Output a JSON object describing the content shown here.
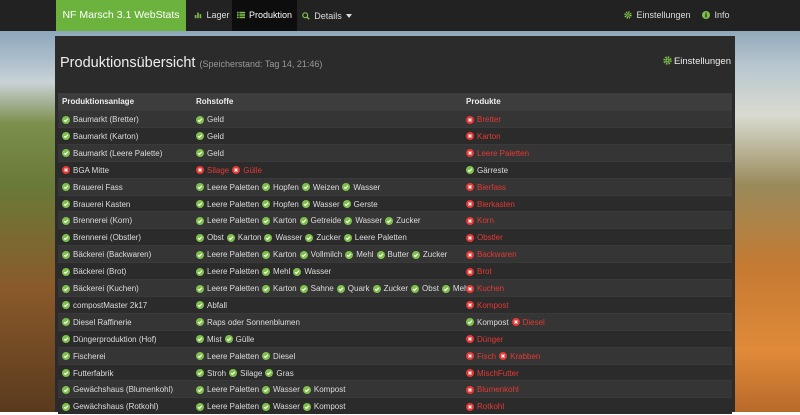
{
  "nav": {
    "brand": "NF Marsch 3.1 WebStats",
    "items": [
      "Lager",
      "Produktion",
      "Details"
    ],
    "active": 1,
    "right": [
      "Einstellungen",
      "Info"
    ]
  },
  "header": {
    "title": "Produktionsübersicht",
    "subtitle": "(Speicherstand: Tag 14, 21:46)",
    "settings": "Einstellungen"
  },
  "table": {
    "columns": [
      "Produktionsanlage",
      "Rohstoffe",
      "Produkte"
    ],
    "rows": [
      {
        "name": "Baumarkt (Bretter)",
        "ok": true,
        "inputs": [
          {
            "label": "Geld",
            "ok": true
          }
        ],
        "outputs": [
          {
            "label": "Bretter",
            "ok": false
          }
        ]
      },
      {
        "name": "Baumarkt (Karton)",
        "ok": true,
        "inputs": [
          {
            "label": "Geld",
            "ok": true
          }
        ],
        "outputs": [
          {
            "label": "Karton",
            "ok": false
          }
        ]
      },
      {
        "name": "Baumarkt (Leere Palette)",
        "ok": true,
        "inputs": [
          {
            "label": "Geld",
            "ok": true
          }
        ],
        "outputs": [
          {
            "label": "Leere Paletten",
            "ok": false
          }
        ]
      },
      {
        "name": "BGA Mitte",
        "ok": false,
        "inputs": [
          {
            "label": "Silage",
            "ok": false
          },
          {
            "label": "Gülle",
            "ok": false
          }
        ],
        "outputs": [
          {
            "label": "Gärreste",
            "ok": true
          }
        ]
      },
      {
        "name": "Brauerei Fass",
        "ok": true,
        "inputs": [
          {
            "label": "Leere Paletten",
            "ok": true
          },
          {
            "label": "Hopfen",
            "ok": true
          },
          {
            "label": "Weizen",
            "ok": true
          },
          {
            "label": "Wasser",
            "ok": true
          }
        ],
        "outputs": [
          {
            "label": "Bierfass",
            "ok": false
          }
        ]
      },
      {
        "name": "Brauerei Kasten",
        "ok": true,
        "inputs": [
          {
            "label": "Leere Paletten",
            "ok": true
          },
          {
            "label": "Hopfen",
            "ok": true
          },
          {
            "label": "Wasser",
            "ok": true
          },
          {
            "label": "Gerste",
            "ok": true
          }
        ],
        "outputs": [
          {
            "label": "Bierkasten",
            "ok": false
          }
        ]
      },
      {
        "name": "Brennerei (Korn)",
        "ok": true,
        "inputs": [
          {
            "label": "Leere Paletten",
            "ok": true
          },
          {
            "label": "Karton",
            "ok": true
          },
          {
            "label": "Getreide",
            "ok": true
          },
          {
            "label": "Wasser",
            "ok": true
          },
          {
            "label": "Zucker",
            "ok": true
          }
        ],
        "outputs": [
          {
            "label": "Korn",
            "ok": false
          }
        ]
      },
      {
        "name": "Brennerei (Obstler)",
        "ok": true,
        "inputs": [
          {
            "label": "Obst",
            "ok": true
          },
          {
            "label": "Karton",
            "ok": true
          },
          {
            "label": "Wasser",
            "ok": true
          },
          {
            "label": "Zucker",
            "ok": true
          },
          {
            "label": "Leere Paletten",
            "ok": true
          }
        ],
        "outputs": [
          {
            "label": "Obstler",
            "ok": false
          }
        ]
      },
      {
        "name": "Bäckerei (Backwaren)",
        "ok": true,
        "inputs": [
          {
            "label": "Leere Paletten",
            "ok": true
          },
          {
            "label": "Karton",
            "ok": true
          },
          {
            "label": "Vollmilch",
            "ok": true
          },
          {
            "label": "Mehl",
            "ok": true
          },
          {
            "label": "Butter",
            "ok": true
          },
          {
            "label": "Zucker",
            "ok": true
          }
        ],
        "outputs": [
          {
            "label": "Backwaren",
            "ok": false
          }
        ]
      },
      {
        "name": "Bäckerei (Brot)",
        "ok": true,
        "inputs": [
          {
            "label": "Leere Paletten",
            "ok": true
          },
          {
            "label": "Mehl",
            "ok": true
          },
          {
            "label": "Wasser",
            "ok": true
          }
        ],
        "outputs": [
          {
            "label": "Brot",
            "ok": false
          }
        ]
      },
      {
        "name": "Bäckerei (Kuchen)",
        "ok": true,
        "inputs": [
          {
            "label": "Leere Paletten",
            "ok": true
          },
          {
            "label": "Karton",
            "ok": true
          },
          {
            "label": "Sahne",
            "ok": true
          },
          {
            "label": "Quark",
            "ok": true
          },
          {
            "label": "Zucker",
            "ok": true
          },
          {
            "label": "Obst",
            "ok": true
          },
          {
            "label": "Mehl",
            "ok": true
          }
        ],
        "outputs": [
          {
            "label": "Kuchen",
            "ok": false
          }
        ]
      },
      {
        "name": "compostMaster 2k17",
        "ok": true,
        "inputs": [
          {
            "label": "Abfall",
            "ok": true
          }
        ],
        "outputs": [
          {
            "label": "Kompost",
            "ok": false
          }
        ]
      },
      {
        "name": "Diesel Raffinerie",
        "ok": true,
        "inputs": [
          {
            "label": "Raps oder Sonnenblumen",
            "ok": true
          }
        ],
        "outputs": [
          {
            "label": "Kompost",
            "ok": true
          },
          {
            "label": "Diesel",
            "ok": false
          }
        ]
      },
      {
        "name": "Düngerproduktion (Hof)",
        "ok": true,
        "inputs": [
          {
            "label": "Mist",
            "ok": true
          },
          {
            "label": "Gülle",
            "ok": true
          }
        ],
        "outputs": [
          {
            "label": "Dünger",
            "ok": false
          }
        ]
      },
      {
        "name": "Fischerei",
        "ok": true,
        "inputs": [
          {
            "label": "Leere Paletten",
            "ok": true
          },
          {
            "label": "Diesel",
            "ok": true
          }
        ],
        "outputs": [
          {
            "label": "Fisch",
            "ok": false
          },
          {
            "label": "Krabben",
            "ok": false
          }
        ]
      },
      {
        "name": "Futterfabrik",
        "ok": true,
        "inputs": [
          {
            "label": "Stroh",
            "ok": true
          },
          {
            "label": "Silage",
            "ok": true
          },
          {
            "label": "Gras",
            "ok": true
          }
        ],
        "outputs": [
          {
            "label": "MischFutter",
            "ok": false
          }
        ]
      },
      {
        "name": "Gewächshaus (Blumenkohl)",
        "ok": true,
        "inputs": [
          {
            "label": "Leere Paletten",
            "ok": true
          },
          {
            "label": "Wasser",
            "ok": true
          },
          {
            "label": "Kompost",
            "ok": true
          }
        ],
        "outputs": [
          {
            "label": "Blumenkohl",
            "ok": false
          }
        ]
      },
      {
        "name": "Gewächshaus (Rotkohl)",
        "ok": true,
        "inputs": [
          {
            "label": "Leere Paletten",
            "ok": true
          },
          {
            "label": "Wasser",
            "ok": true
          },
          {
            "label": "Kompost",
            "ok": true
          }
        ],
        "outputs": [
          {
            "label": "Rotkohl",
            "ok": false
          }
        ]
      }
    ]
  }
}
